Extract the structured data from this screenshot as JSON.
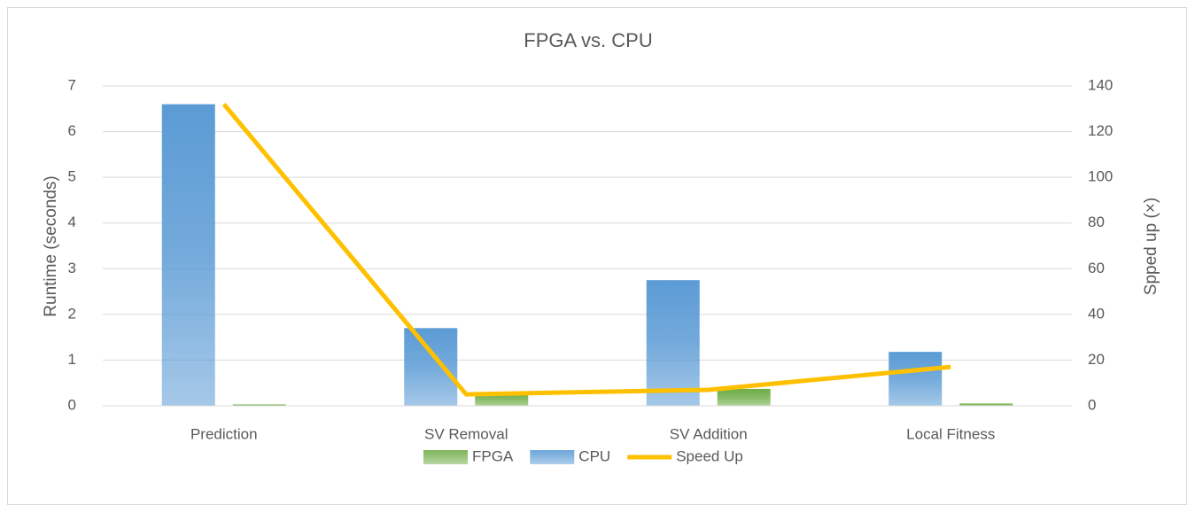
{
  "chart_data": {
    "type": "bar",
    "title": "FPGA  vs. CPU",
    "y_label": "Runtime (seconds)",
    "y2_label": "Spped up (×)",
    "categories": [
      "Prediction",
      "SV Removal",
      "SV Addition",
      "Local Fitness"
    ],
    "series": [
      {
        "name": "FPGA",
        "type": "bar",
        "color": "#70ad47",
        "values": [
          0.03,
          0.3,
          0.37,
          0.05
        ]
      },
      {
        "name": "CPU",
        "type": "bar",
        "color": "#5b9bd5",
        "values": [
          6.6,
          1.7,
          2.75,
          1.18
        ]
      },
      {
        "name": "Speed Up",
        "type": "line",
        "axis": "y2",
        "color": "#ffc000",
        "values": [
          132,
          5,
          7,
          17
        ]
      }
    ],
    "ylim": [
      0,
      7
    ],
    "yticks": [
      0,
      1,
      2,
      3,
      4,
      5,
      6,
      7
    ],
    "y2lim": [
      0,
      140
    ],
    "y2ticks": [
      0,
      20,
      40,
      60,
      80,
      100,
      120,
      140
    ],
    "grid": true,
    "legend": "bottom"
  }
}
